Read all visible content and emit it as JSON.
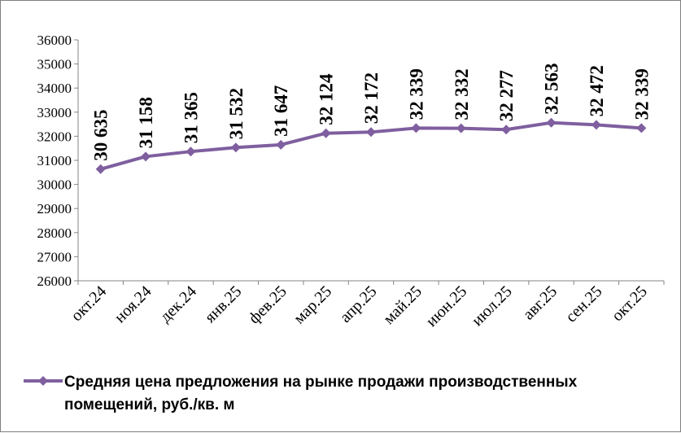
{
  "chart_data": {
    "type": "line",
    "categories": [
      "окт.24",
      "ноя.24",
      "дек.24",
      "янв.25",
      "фев.25",
      "мар.25",
      "апр.25",
      "май.25",
      "июн.25",
      "июл.25",
      "авг.25",
      "сен.25",
      "окт.25"
    ],
    "series": [
      {
        "name": "Средняя цена предложения на рынке продажи  производственных помещений,  руб./кв. м",
        "values": [
          30635,
          31158,
          31365,
          31532,
          31647,
          32124,
          32172,
          32339,
          32332,
          32277,
          32563,
          32472,
          32339
        ],
        "labels": [
          "30 635",
          "31 158",
          "31 365",
          "31 532",
          "31 647",
          "32 124",
          "32 172",
          "32 339",
          "32 332",
          "32 277",
          "32 563",
          "32 472",
          "32 339"
        ],
        "color": "#7f5f9f"
      }
    ],
    "yticks": [
      "26000",
      "27000",
      "28000",
      "29000",
      "30000",
      "31000",
      "32000",
      "33000",
      "34000",
      "35000",
      "36000"
    ],
    "ylim": [
      26000,
      36000
    ],
    "title": "",
    "xlabel": "",
    "ylabel": "",
    "grid": false,
    "legend": "bottom",
    "legend_lines": [
      "Средняя цена предложения на рынке продажи  производственных",
      "помещений,  руб./кв. м"
    ]
  }
}
